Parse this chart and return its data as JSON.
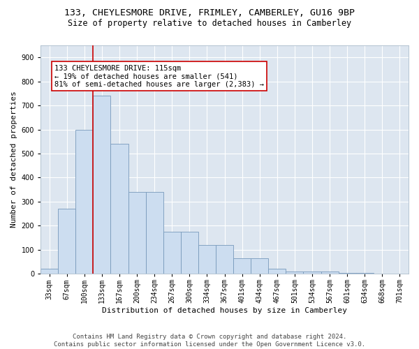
{
  "title_line1": "133, CHEYLESMORE DRIVE, FRIMLEY, CAMBERLEY, GU16 9BP",
  "title_line2": "Size of property relative to detached houses in Camberley",
  "xlabel": "Distribution of detached houses by size in Camberley",
  "ylabel": "Number of detached properties",
  "categories": [
    "33sqm",
    "67sqm",
    "100sqm",
    "133sqm",
    "167sqm",
    "200sqm",
    "234sqm",
    "267sqm",
    "300sqm",
    "334sqm",
    "367sqm",
    "401sqm",
    "434sqm",
    "467sqm",
    "501sqm",
    "534sqm",
    "567sqm",
    "601sqm",
    "634sqm",
    "668sqm",
    "701sqm"
  ],
  "values": [
    20,
    270,
    600,
    740,
    540,
    340,
    340,
    175,
    175,
    120,
    120,
    65,
    65,
    20,
    10,
    10,
    8,
    5,
    5,
    2,
    2
  ],
  "bar_color": "#ccddf0",
  "bar_edge_color": "#7799bb",
  "annotation_text": "133 CHEYLESMORE DRIVE: 115sqm\n← 19% of detached houses are smaller (541)\n81% of semi-detached houses are larger (2,383) →",
  "annotation_box_color": "#ffffff",
  "annotation_box_edge": "#cc0000",
  "ylim": [
    0,
    950
  ],
  "yticks": [
    0,
    100,
    200,
    300,
    400,
    500,
    600,
    700,
    800,
    900
  ],
  "background_color": "#dde6f0",
  "grid_color": "#ffffff",
  "footer_line1": "Contains HM Land Registry data © Crown copyright and database right 2024.",
  "footer_line2": "Contains public sector information licensed under the Open Government Licence v3.0.",
  "title_fontsize": 9.5,
  "subtitle_fontsize": 8.5,
  "axis_label_fontsize": 8,
  "tick_fontsize": 7,
  "annotation_fontsize": 7.5,
  "footer_fontsize": 6.5
}
